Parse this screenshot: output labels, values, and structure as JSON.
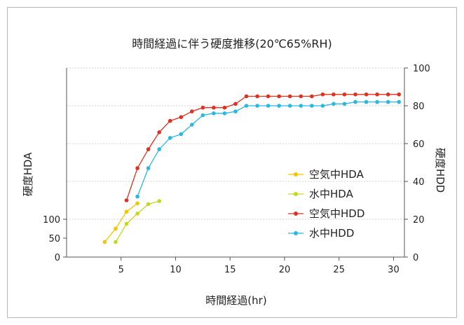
{
  "chart_data": {
    "type": "line",
    "title": "時間経過に伴う硬度推移(20℃65%RH)",
    "xlabel": "時間経過(hr)",
    "ylabel_left": "硬度HDA",
    "ylabel_right": "硬度HDD",
    "xlim": [
      0,
      31
    ],
    "x_ticks": [
      5,
      10,
      15,
      20,
      25,
      30
    ],
    "ylim_left": [
      0,
      500
    ],
    "y_ticks_left": [
      0,
      50,
      100
    ],
    "ylim_right": [
      0,
      100
    ],
    "y_ticks_right": [
      0,
      20,
      40,
      60,
      80,
      100
    ],
    "grid": true,
    "legend_position": "center-right",
    "series": [
      {
        "name": "空気中HDA",
        "axis": "left",
        "color": "#f5c400",
        "x": [
          3.5,
          4.5,
          5.5,
          6.5
        ],
        "y": [
          40,
          75,
          120,
          142
        ]
      },
      {
        "name": "水中HDA",
        "axis": "left",
        "color": "#c6d81c",
        "x": [
          4.5,
          5.5,
          6.5,
          7.5,
          8.5
        ],
        "y": [
          40,
          88,
          115,
          140,
          148
        ]
      },
      {
        "name": "空気中HDD",
        "axis": "right",
        "color": "#e03020",
        "x": [
          5.5,
          6.5,
          7.5,
          8.5,
          9.5,
          10.5,
          11.5,
          12.5,
          13.5,
          14.5,
          15.5,
          16.5,
          17.5,
          18.5,
          19.5,
          20.5,
          21.5,
          22.5,
          23.5,
          24.5,
          25.5,
          26.5,
          27.5,
          28.5,
          29.5,
          30.5
        ],
        "y": [
          30,
          47,
          57,
          66,
          72,
          74,
          77,
          79,
          79,
          79,
          81,
          85,
          85,
          85,
          85,
          85,
          85,
          85,
          86,
          86,
          86,
          86,
          86,
          86,
          86,
          86
        ]
      },
      {
        "name": "水中HDD",
        "axis": "right",
        "color": "#2ab8e0",
        "x": [
          6.5,
          7.5,
          8.5,
          9.5,
          10.5,
          11.5,
          12.5,
          13.5,
          14.5,
          15.5,
          16.5,
          17.5,
          18.5,
          19.5,
          20.5,
          21.5,
          22.5,
          23.5,
          24.5,
          25.5,
          26.5,
          27.5,
          28.5,
          29.5,
          30.5
        ],
        "y": [
          32,
          47,
          57,
          63,
          65,
          70,
          75,
          76,
          76,
          77,
          80,
          80,
          80,
          80,
          80,
          80,
          80,
          80,
          81,
          81,
          82,
          82,
          82,
          82,
          82
        ]
      }
    ]
  }
}
